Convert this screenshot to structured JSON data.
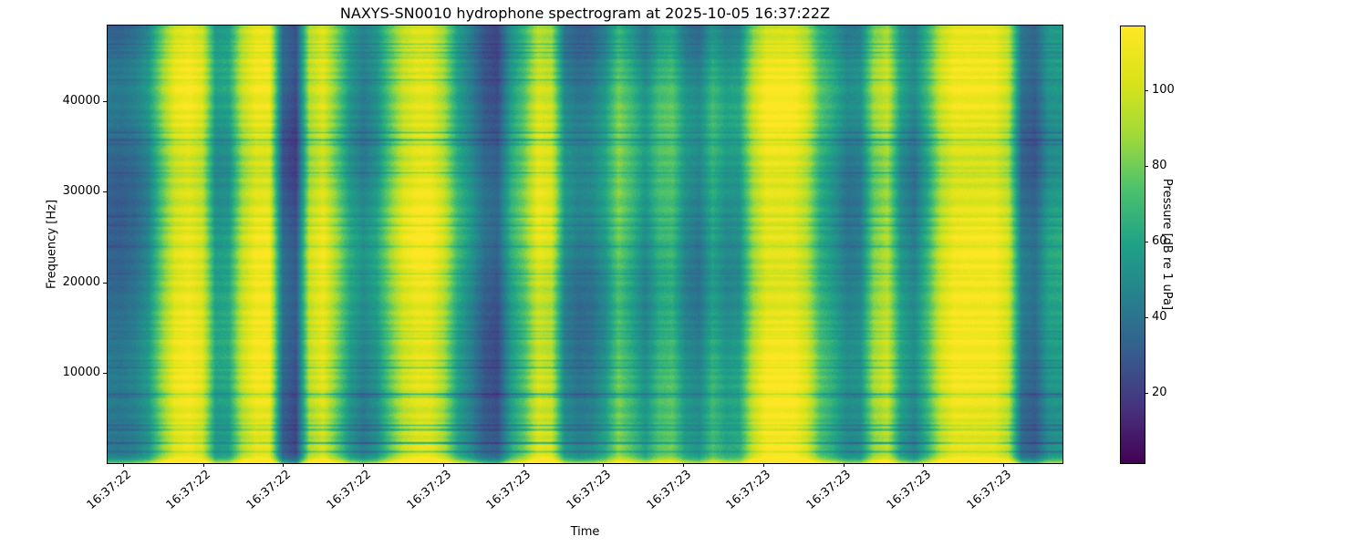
{
  "chart_data": {
    "type": "heatmap",
    "subtype": "spectrogram",
    "title": "NAXYS-SN0010 hydrophone spectrogram at 2025-10-05 16:37:22Z",
    "xlabel": "Time",
    "ylabel": "Frequency [Hz]",
    "colorbar_label": "Pressure [dB re 1 uPa]",
    "colormap": "viridis",
    "grid": false,
    "x_tick_labels": [
      "16:37:22",
      "16:37:22",
      "16:37:22",
      "16:37:22",
      "16:37:23",
      "16:37:23",
      "16:37:23",
      "16:37:23",
      "16:37:23",
      "16:37:23",
      "16:37:23",
      "16:37:23"
    ],
    "y_tick_values": [
      10000,
      20000,
      30000,
      40000
    ],
    "freq_range_hz": [
      0,
      48400
    ],
    "colorbar_tick_values": [
      20,
      40,
      60,
      80,
      100
    ],
    "value_range_db": [
      1.4,
      116.9
    ],
    "viridis_stops": [
      [
        0.0,
        68,
        1,
        84
      ],
      [
        0.125,
        70,
        50,
        126
      ],
      [
        0.25,
        54,
        92,
        141
      ],
      [
        0.375,
        39,
        127,
        142
      ],
      [
        0.5,
        31,
        161,
        135
      ],
      [
        0.625,
        74,
        193,
        109
      ],
      [
        0.75,
        160,
        218,
        57
      ],
      [
        0.875,
        218,
        227,
        25
      ],
      [
        1.0,
        253,
        231,
        37
      ]
    ],
    "time_envelope": [
      0.33,
      0.32,
      0.36,
      0.45,
      0.72,
      0.95,
      1.0,
      0.92,
      0.5,
      0.52,
      0.85,
      1.0,
      1.0,
      0.3,
      0.22,
      0.85,
      0.97,
      0.75,
      0.52,
      0.42,
      0.5,
      0.72,
      0.92,
      1.0,
      1.0,
      0.85,
      0.58,
      0.45,
      0.3,
      0.26,
      0.55,
      0.7,
      0.95,
      0.9,
      0.45,
      0.38,
      0.4,
      0.5,
      0.72,
      0.6,
      0.46,
      0.62,
      0.65,
      0.45,
      0.4,
      0.58,
      0.48,
      0.5,
      0.82,
      1.0,
      1.0,
      1.0,
      0.88,
      0.62,
      0.52,
      0.4,
      0.42,
      0.75,
      0.85,
      0.5,
      0.4,
      0.6,
      0.88,
      1.0,
      1.0,
      1.0,
      1.0,
      0.88,
      0.35,
      0.3,
      0.5,
      0.52
    ]
  }
}
